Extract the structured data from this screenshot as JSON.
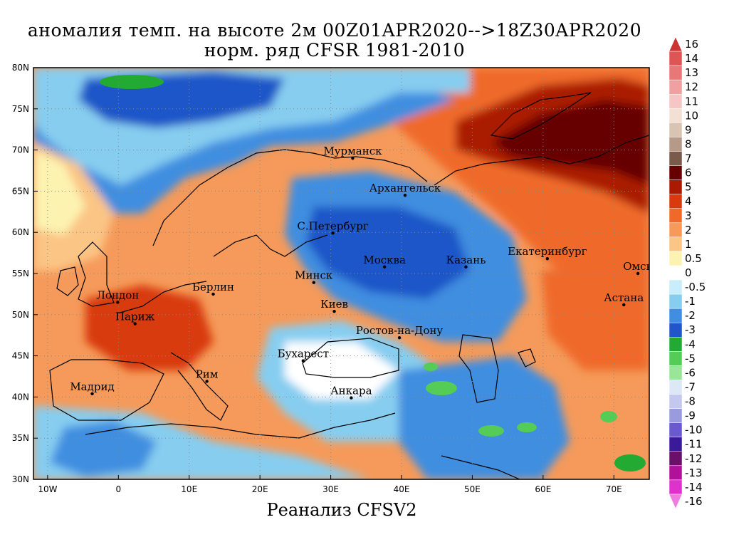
{
  "title_line1": "аномалия темп. на высоте 2м 00Z01APR2020-->18Z30APR2020",
  "title_line2": "норм. ряд CFSR 1981-2010",
  "source": "Реанализ CFSV2",
  "map": {
    "lon_range": [
      -12,
      75
    ],
    "lat_range": [
      30,
      80
    ],
    "lon_ticks": [
      {
        "v": -10,
        "t": "10W"
      },
      {
        "v": 0,
        "t": "0"
      },
      {
        "v": 10,
        "t": "10E"
      },
      {
        "v": 20,
        "t": "20E"
      },
      {
        "v": 30,
        "t": "30E"
      },
      {
        "v": 40,
        "t": "40E"
      },
      {
        "v": 50,
        "t": "50E"
      },
      {
        "v": 60,
        "t": "60E"
      },
      {
        "v": 70,
        "t": "70E"
      }
    ],
    "lat_ticks": [
      {
        "v": 30,
        "t": "30N"
      },
      {
        "v": 35,
        "t": "35N"
      },
      {
        "v": 40,
        "t": "40N"
      },
      {
        "v": 45,
        "t": "45N"
      },
      {
        "v": 50,
        "t": "50N"
      },
      {
        "v": 55,
        "t": "55N"
      },
      {
        "v": 60,
        "t": "60N"
      },
      {
        "v": 65,
        "t": "65N"
      },
      {
        "v": 70,
        "t": "70N"
      },
      {
        "v": 75,
        "t": "75N"
      },
      {
        "v": 80,
        "t": "80N"
      }
    ],
    "grid": true,
    "cities": [
      {
        "name": "Мурманск",
        "lon": 33.1,
        "lat": 69.0
      },
      {
        "name": "Архангельск",
        "lon": 40.5,
        "lat": 64.5
      },
      {
        "name": "С.Петербург",
        "lon": 30.3,
        "lat": 59.9
      },
      {
        "name": "Москва",
        "lon": 37.6,
        "lat": 55.8
      },
      {
        "name": "Казань",
        "lon": 49.1,
        "lat": 55.8
      },
      {
        "name": "Екатеринбург",
        "lon": 60.6,
        "lat": 56.8
      },
      {
        "name": "Минск",
        "lon": 27.6,
        "lat": 53.9
      },
      {
        "name": "Киев",
        "lon": 30.5,
        "lat": 50.4
      },
      {
        "name": "Лондон",
        "lon": -0.1,
        "lat": 51.5
      },
      {
        "name": "Париж",
        "lon": 2.35,
        "lat": 48.9
      },
      {
        "name": "Берлин",
        "lon": 13.4,
        "lat": 52.5
      },
      {
        "name": "Ростов-на-Дону",
        "lon": 39.7,
        "lat": 47.2
      },
      {
        "name": "Омск",
        "lon": 73.4,
        "lat": 55.0
      },
      {
        "name": "Астана",
        "lon": 71.4,
        "lat": 51.2
      },
      {
        "name": "Бухарест",
        "lon": 26.1,
        "lat": 44.4
      },
      {
        "name": "Рим",
        "lon": 12.5,
        "lat": 41.9
      },
      {
        "name": "Мадрид",
        "lon": -3.7,
        "lat": 40.4
      },
      {
        "name": "Анкара",
        "lon": 32.9,
        "lat": 39.9
      }
    ]
  },
  "colorbar": {
    "levels": [
      {
        "label": "16",
        "color": "#cc3333"
      },
      {
        "label": "14",
        "color": "#dd5555"
      },
      {
        "label": "13",
        "color": "#e87777"
      },
      {
        "label": "12",
        "color": "#f0a0a0"
      },
      {
        "label": "11",
        "color": "#f6c6c6"
      },
      {
        "label": "10",
        "color": "#f2e0d4"
      },
      {
        "label": "9",
        "color": "#d9c4b4"
      },
      {
        "label": "8",
        "color": "#b59a88"
      },
      {
        "label": "7",
        "color": "#7a5a4a"
      },
      {
        "label": "6",
        "color": "#660000"
      },
      {
        "label": "5",
        "color": "#aa1a00"
      },
      {
        "label": "4",
        "color": "#d83a10"
      },
      {
        "label": "3",
        "color": "#ef6a2a"
      },
      {
        "label": "2",
        "color": "#f59a5a"
      },
      {
        "label": "1",
        "color": "#fbc585"
      },
      {
        "label": "0.5",
        "color": "#fdf3b0"
      },
      {
        "label": "0",
        "color": "#ffffff"
      },
      {
        "label": "-0.5",
        "color": "#c7eefa"
      },
      {
        "label": "-1",
        "color": "#86cdf0"
      },
      {
        "label": "-2",
        "color": "#3f8ee0"
      },
      {
        "label": "-3",
        "color": "#1f56c8"
      },
      {
        "label": "-4",
        "color": "#22aa33"
      },
      {
        "label": "-5",
        "color": "#55cc55"
      },
      {
        "label": "-6",
        "color": "#99e699"
      },
      {
        "label": "-7",
        "color": "#dde8f7"
      },
      {
        "label": "-8",
        "color": "#c4c8ef"
      },
      {
        "label": "-9",
        "color": "#9a9adf"
      },
      {
        "label": "-10",
        "color": "#6a5acd"
      },
      {
        "label": "-11",
        "color": "#3a1a99"
      },
      {
        "label": "-12",
        "color": "#6a0f6a"
      },
      {
        "label": "-13",
        "color": "#b0109a"
      },
      {
        "label": "-14",
        "color": "#dd33cc"
      },
      {
        "label": "-16",
        "color": "#f07ae0"
      }
    ]
  },
  "colors": {
    "ocean_base": "#fbc585",
    "land_base": "#f59a5a",
    "coast": "#000000"
  }
}
